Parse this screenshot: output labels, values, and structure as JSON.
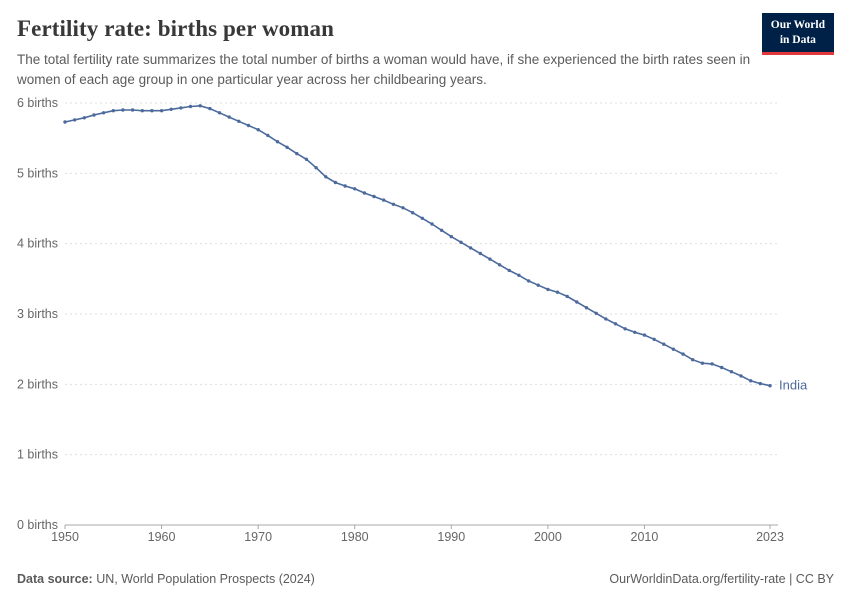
{
  "header": {
    "title": "Fertility rate: births per woman",
    "subtitle": "The total fertility rate summarizes the total number of births a woman would have, if she experienced the birth rates seen in women of each age group in one particular year across her childbearing years.",
    "logo": {
      "line1": "Our World",
      "line2": "in Data"
    }
  },
  "chart_data": {
    "type": "line",
    "title": "Fertility rate: births per woman",
    "entity": "India",
    "line_color": "#4c6a9c",
    "grid": true,
    "ylim": [
      0,
      6
    ],
    "yticks": [
      0,
      1,
      2,
      3,
      4,
      5,
      6
    ],
    "ytick_format": "{} births",
    "xticks": [
      1950,
      1960,
      1970,
      1980,
      1990,
      2000,
      2010,
      2023
    ],
    "x": [
      1950,
      1951,
      1952,
      1953,
      1954,
      1955,
      1956,
      1957,
      1958,
      1959,
      1960,
      1961,
      1962,
      1963,
      1964,
      1965,
      1966,
      1967,
      1968,
      1969,
      1970,
      1971,
      1972,
      1973,
      1974,
      1975,
      1976,
      1977,
      1978,
      1979,
      1980,
      1981,
      1982,
      1983,
      1984,
      1985,
      1986,
      1987,
      1988,
      1989,
      1990,
      1991,
      1992,
      1993,
      1994,
      1995,
      1996,
      1997,
      1998,
      1999,
      2000,
      2001,
      2002,
      2003,
      2004,
      2005,
      2006,
      2007,
      2008,
      2009,
      2010,
      2011,
      2012,
      2013,
      2014,
      2015,
      2016,
      2017,
      2018,
      2019,
      2020,
      2021,
      2022,
      2023
    ],
    "series": [
      {
        "name": "India",
        "values": [
          5.73,
          5.76,
          5.79,
          5.83,
          5.86,
          5.89,
          5.9,
          5.9,
          5.89,
          5.89,
          5.89,
          5.91,
          5.93,
          5.95,
          5.96,
          5.92,
          5.86,
          5.8,
          5.74,
          5.68,
          5.62,
          5.54,
          5.45,
          5.37,
          5.28,
          5.2,
          5.08,
          4.95,
          4.87,
          4.82,
          4.78,
          4.72,
          4.67,
          4.62,
          4.56,
          4.51,
          4.44,
          4.36,
          4.28,
          4.19,
          4.1,
          4.02,
          3.94,
          3.86,
          3.78,
          3.7,
          3.62,
          3.55,
          3.47,
          3.41,
          3.35,
          3.31,
          3.25,
          3.17,
          3.09,
          3.01,
          2.93,
          2.86,
          2.79,
          2.74,
          2.7,
          2.64,
          2.57,
          2.5,
          2.43,
          2.35,
          2.3,
          2.29,
          2.24,
          2.18,
          2.12,
          2.05,
          2.01,
          1.98
        ]
      }
    ]
  },
  "footer": {
    "source_label": "Data source:",
    "source": " UN, World Population Prospects (2024)",
    "right": "OurWorldinData.org/fertility-rate | CC BY"
  }
}
